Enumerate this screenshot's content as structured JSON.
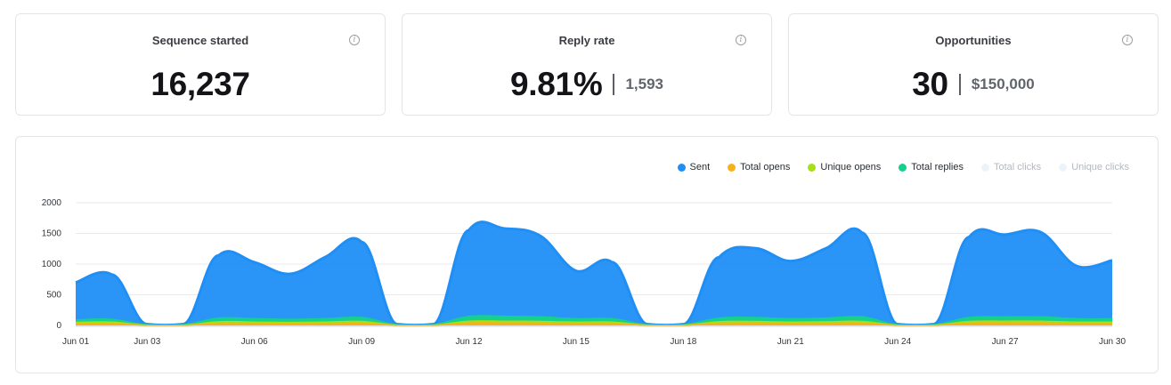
{
  "stats": {
    "sequence_started": {
      "label": "Sequence started",
      "value": "16,237"
    },
    "reply_rate": {
      "label": "Reply rate",
      "value": "9.81%",
      "secondary": "1,593"
    },
    "opportunities": {
      "label": "Opportunities",
      "value": "30",
      "secondary": "$150,000"
    }
  },
  "legend": [
    {
      "label": "Sent",
      "color": "#1f8ff5",
      "active": true
    },
    {
      "label": "Total opens",
      "color": "#f7b21b",
      "active": true
    },
    {
      "label": "Unique opens",
      "color": "#a3e014",
      "active": true
    },
    {
      "label": "Total replies",
      "color": "#14d18e",
      "active": true
    },
    {
      "label": "Total clicks",
      "color": "#edf3fa",
      "active": false
    },
    {
      "label": "Unique clicks",
      "color": "#edf3fa",
      "active": false
    }
  ],
  "chart_data": {
    "type": "area",
    "x": [
      "Jun 01",
      "Jun 02",
      "Jun 03",
      "Jun 04",
      "Jun 05",
      "Jun 06",
      "Jun 07",
      "Jun 08",
      "Jun 09",
      "Jun 10",
      "Jun 11",
      "Jun 12",
      "Jun 13",
      "Jun 14",
      "Jun 15",
      "Jun 16",
      "Jun 17",
      "Jun 18",
      "Jun 19",
      "Jun 20",
      "Jun 21",
      "Jun 22",
      "Jun 23",
      "Jun 24",
      "Jun 25",
      "Jun 26",
      "Jun 27",
      "Jun 28",
      "Jun 29",
      "Jun 30"
    ],
    "x_tick_labels": [
      "Jun 01",
      "Jun 03",
      "Jun 06",
      "Jun 09",
      "Jun 12",
      "Jun 15",
      "Jun 18",
      "Jun 21",
      "Jun 24",
      "Jun 27",
      "Jun 30"
    ],
    "y_ticks": [
      0,
      500,
      1000,
      1500,
      2000
    ],
    "ylim": [
      0,
      2000
    ],
    "series": [
      {
        "name": "Sent",
        "color": "#1f8ff5",
        "values": [
          700,
          830,
          20,
          20,
          1140,
          1030,
          840,
          1120,
          1360,
          20,
          20,
          1550,
          1580,
          1460,
          890,
          1030,
          20,
          20,
          1110,
          1260,
          1050,
          1260,
          1510,
          20,
          20,
          1440,
          1480,
          1520,
          970,
          1060
        ]
      },
      {
        "name": "Total replies",
        "color": "#14d18e",
        "values": [
          90,
          100,
          10,
          10,
          120,
          110,
          100,
          110,
          130,
          10,
          10,
          150,
          150,
          140,
          110,
          110,
          10,
          10,
          120,
          130,
          110,
          120,
          140,
          10,
          10,
          130,
          140,
          140,
          110,
          110
        ]
      },
      {
        "name": "Unique opens",
        "color": "#a3e014",
        "values": [
          50,
          55,
          5,
          5,
          60,
          55,
          50,
          55,
          65,
          5,
          5,
          70,
          70,
          65,
          55,
          55,
          5,
          5,
          60,
          65,
          55,
          60,
          65,
          5,
          5,
          65,
          70,
          70,
          55,
          55
        ]
      },
      {
        "name": "Total opens",
        "color": "#f7b21b",
        "values": [
          30,
          32,
          3,
          3,
          35,
          33,
          30,
          33,
          38,
          3,
          3,
          40,
          40,
          38,
          33,
          33,
          3,
          3,
          35,
          38,
          33,
          35,
          38,
          3,
          3,
          38,
          40,
          40,
          33,
          33
        ]
      }
    ],
    "legend_position": "top-right",
    "grid": true
  }
}
